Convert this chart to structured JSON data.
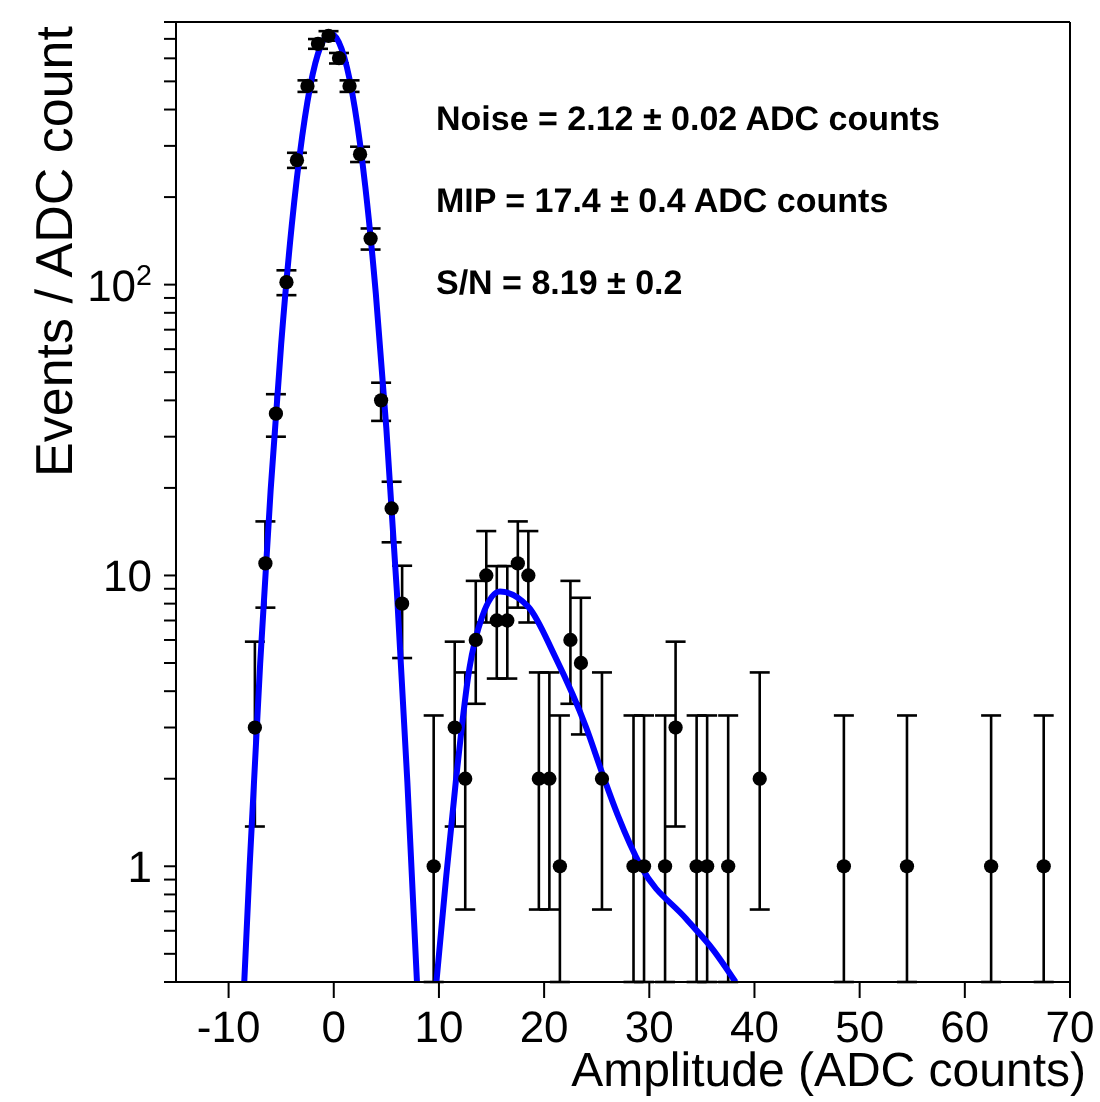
{
  "chart_data": {
    "type": "scatter",
    "xlabel": "Amplitude (ADC counts)",
    "ylabel": "Events / ADC count",
    "log": "y",
    "grid": false,
    "marker": "circle",
    "xlim": [
      -15,
      70
    ],
    "xticks": [
      -10,
      0,
      10,
      20,
      30,
      40,
      50,
      60,
      70
    ],
    "ylim": [
      0.4,
      800
    ],
    "yticks": [
      {
        "value": 0.4,
        "label": null
      },
      {
        "value": 0.5,
        "label": null
      },
      {
        "value": 0.6,
        "label": null
      },
      {
        "value": 0.7,
        "label": null
      },
      {
        "value": 0.8,
        "label": null
      },
      {
        "value": 0.9,
        "label": null
      },
      1,
      {
        "value": 2,
        "label": null
      },
      {
        "value": 3,
        "label": null
      },
      {
        "value": 4,
        "label": null
      },
      {
        "value": 5,
        "label": null
      },
      {
        "value": 6,
        "label": null
      },
      {
        "value": 7,
        "label": null
      },
      {
        "value": 8,
        "label": null
      },
      {
        "value": 9,
        "label": null
      },
      10,
      {
        "value": 20,
        "label": null
      },
      {
        "value": 30,
        "label": null
      },
      {
        "value": 40,
        "label": null
      },
      {
        "value": 50,
        "label": null
      },
      {
        "value": 60,
        "label": null
      },
      {
        "value": 70,
        "label": null
      },
      {
        "value": 80,
        "label": null
      },
      {
        "value": 90,
        "label": null
      },
      {
        "value": 100,
        "label": "10$^{2}$"
      },
      {
        "value": 200,
        "label": null
      },
      {
        "value": 300,
        "label": null
      },
      {
        "value": 400,
        "label": null
      },
      {
        "value": 500,
        "label": null
      },
      {
        "value": 600,
        "label": null
      },
      {
        "value": 700,
        "label": null
      },
      {
        "value": 800,
        "label": null
      }
    ],
    "annotations": [
      "Noise = 2.12 ± 0.02 ADC counts",
      "MIP = 17.4 ± 0.4 ADC counts",
      "S/N = 8.19 ± 0.2"
    ],
    "series": [
      {
        "color": "#000000",
        "x": [
          -7.5,
          -6.5,
          -5.5,
          -4.5,
          -3.5,
          -2.5,
          -1.5,
          -0.5,
          0.5,
          1.5,
          2.5,
          3.5,
          4.5,
          5.5,
          6.5,
          9.5,
          11.5,
          12.5,
          13.5,
          14.5,
          15.5,
          16.5,
          17.5,
          18.5,
          19.5,
          20.5,
          21.5,
          22.5,
          23.5,
          25.5,
          28.5,
          29.5,
          31.5,
          32.5,
          34.5,
          35.5,
          37.5,
          40.5,
          48.5,
          54.5,
          62.5,
          67.5
        ],
        "values": [
          3,
          11,
          36,
          102,
          268,
          482,
          673,
          717,
          601,
          482,
          281,
          144,
          40,
          17,
          8,
          1,
          3,
          2,
          6,
          10,
          7,
          7,
          11,
          10,
          2,
          2,
          1,
          6,
          5,
          2,
          1,
          1,
          1,
          3,
          1,
          1,
          1,
          2,
          1,
          1,
          1,
          1
        ],
        "errors": [
          [
            1.37,
            5.92
          ],
          [
            7.75,
            15.34
          ],
          6,
          10,
          16,
          22,
          26,
          27,
          25,
          22,
          17,
          12,
          6,
          4,
          2.8,
          [
            0.4,
            3.3
          ],
          [
            1.37,
            5.92
          ],
          [
            0.71,
            4.64
          ],
          [
            3.62,
            9.58
          ],
          [
            6.89,
            14.21
          ],
          [
            4.42,
            10.77
          ],
          [
            4.42,
            10.77
          ],
          [
            7.75,
            15.34
          ],
          [
            6.89,
            14.21
          ],
          [
            0.71,
            4.64
          ],
          [
            0.71,
            4.64
          ],
          [
            0.4,
            3.3
          ],
          [
            3.62,
            9.58
          ],
          [
            2.84,
            8.38
          ],
          [
            0.71,
            4.64
          ],
          [
            0.4,
            3.3
          ],
          [
            0.4,
            3.3
          ],
          [
            0.4,
            3.3
          ],
          [
            1.37,
            5.92
          ],
          [
            0.4,
            3.3
          ],
          [
            0.4,
            3.3
          ],
          [
            0.4,
            3.3
          ],
          [
            0.71,
            4.64
          ],
          [
            0.4,
            3.3
          ],
          [
            0.4,
            3.3
          ],
          [
            0.4,
            3.3
          ],
          [
            0.4,
            3.3
          ]
        ]
      },
      {
        "type": "line",
        "marker": "none",
        "color": "#0000ff",
        "x": [
          -8.51,
          -8,
          -7,
          -6,
          -5,
          -4,
          -3,
          -2,
          -1,
          -0.3,
          0,
          1,
          2,
          3,
          4,
          5,
          6,
          7,
          7.91
        ],
        "values": [
          0.4,
          1.0,
          4.96,
          19.7,
          62.5,
          159,
          324,
          530,
          691,
          730,
          723,
          605,
          405,
          217,
          93,
          32,
          8.8,
          1.94,
          0.4
        ]
      },
      {
        "type": "line",
        "marker": "none",
        "color": "#0000ff",
        "x": [
          9.76,
          10.7,
          11.6,
          12.9,
          14.1,
          15.8,
          18.5,
          21,
          24,
          25.5,
          27,
          29.2,
          33.5,
          36,
          38.2
        ],
        "values": [
          0.4,
          0.93,
          1.95,
          4.8,
          7.2,
          8.8,
          7.8,
          5.3,
          3.0,
          2.1,
          1.5,
          1.0,
          0.66,
          0.52,
          0.4
        ]
      }
    ]
  }
}
